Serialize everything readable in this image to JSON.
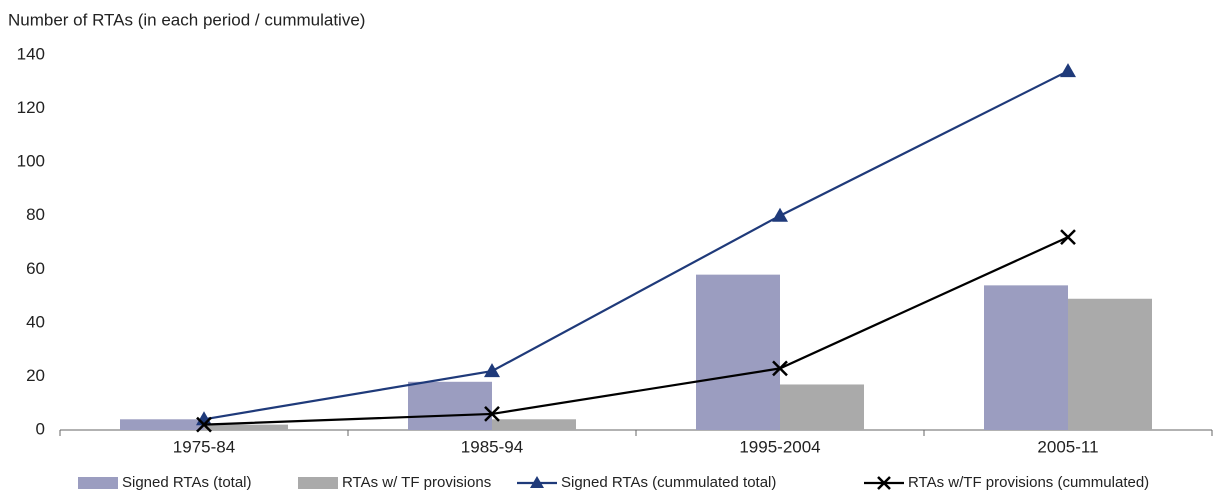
{
  "chart_data": {
    "type": "bar",
    "y_axis_label": "Number of RTAs (in each period / cummulative)",
    "categories": [
      "1975-84",
      "1985-94",
      "1995-2004",
      "2005-11"
    ],
    "series": [
      {
        "name": "Signed RTAs (total)",
        "type": "bar",
        "color": "#9b9dc0",
        "values": [
          4,
          18,
          58,
          54
        ]
      },
      {
        "name": "RTAs w/ TF provisions",
        "type": "bar",
        "color": "#aaaaaa",
        "values": [
          2,
          4,
          17,
          49
        ]
      },
      {
        "name": "Signed RTAs (cummulated total)",
        "type": "line",
        "marker": "triangle",
        "color": "#1f3a7a",
        "values": [
          4,
          22,
          80,
          134
        ]
      },
      {
        "name": "RTAs w/TF provisions (cummulated)",
        "type": "line",
        "marker": "x",
        "color": "#000000",
        "values": [
          2,
          6,
          23,
          72
        ]
      }
    ],
    "ylim": [
      0,
      140
    ],
    "yticks": [
      0,
      20,
      40,
      60,
      80,
      100,
      120,
      140
    ],
    "grid": false,
    "legend": "bottom"
  }
}
